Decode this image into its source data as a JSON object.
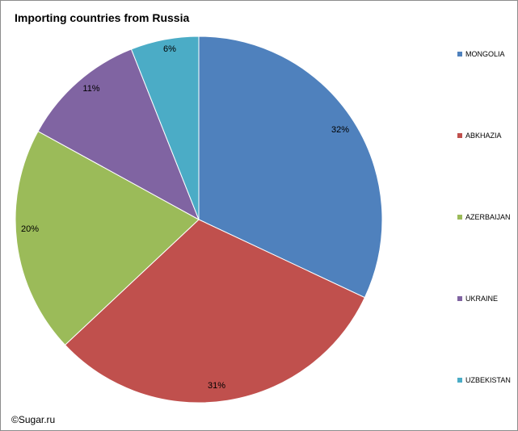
{
  "chart_data": {
    "type": "pie",
    "title": "Importing countries from Russia",
    "categories": [
      "MONGOLIA",
      "ABKHAZIA",
      "AZERBAIJAN",
      "UKRAINE",
      "UZBEKISTAN"
    ],
    "values": [
      32,
      31,
      20,
      11,
      6
    ],
    "labels": [
      "32%",
      "31%",
      "20%",
      "11%",
      "6%"
    ],
    "colors": [
      "#4f81bd",
      "#c0504d",
      "#9bbb59",
      "#8064a2",
      "#4bacc6"
    ],
    "start_angle": "12 o'clock",
    "direction": "clockwise",
    "legend_position": "right"
  },
  "copyright": "©Sugar.ru"
}
